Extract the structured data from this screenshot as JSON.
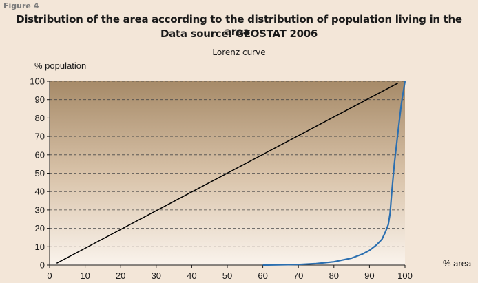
{
  "figure_label": "Figure 4",
  "chart_data": {
    "type": "line",
    "title": "Distribution of the area according to the distribution of population living in the area.",
    "title_line2": "Data source: GEOSTAT 2006",
    "subtitle": "Lorenz curve",
    "xlabel": "% area",
    "ylabel": "% population",
    "xlim": [
      0,
      100
    ],
    "ylim": [
      0,
      100
    ],
    "x_ticks": [
      0,
      10,
      20,
      30,
      40,
      50,
      60,
      70,
      80,
      90,
      100
    ],
    "y_ticks": [
      0,
      10,
      20,
      30,
      40,
      50,
      60,
      70,
      80,
      90,
      100
    ],
    "grid": "horizontal dashed",
    "series": [
      {
        "color": "#000000",
        "x": [
          2,
          98
        ],
        "y": [
          1,
          99
        ]
      },
      {
        "color": "#2b6fb0",
        "x": [
          60,
          70,
          75,
          80,
          85,
          88,
          90,
          92,
          93.5,
          94.5,
          95.3,
          95.8,
          96.2,
          97,
          98,
          99,
          100
        ],
        "y": [
          0,
          0.3,
          0.8,
          1.8,
          3.8,
          6,
          8,
          11,
          14,
          18,
          22,
          28,
          38,
          55,
          72,
          88,
          100
        ]
      }
    ]
  }
}
